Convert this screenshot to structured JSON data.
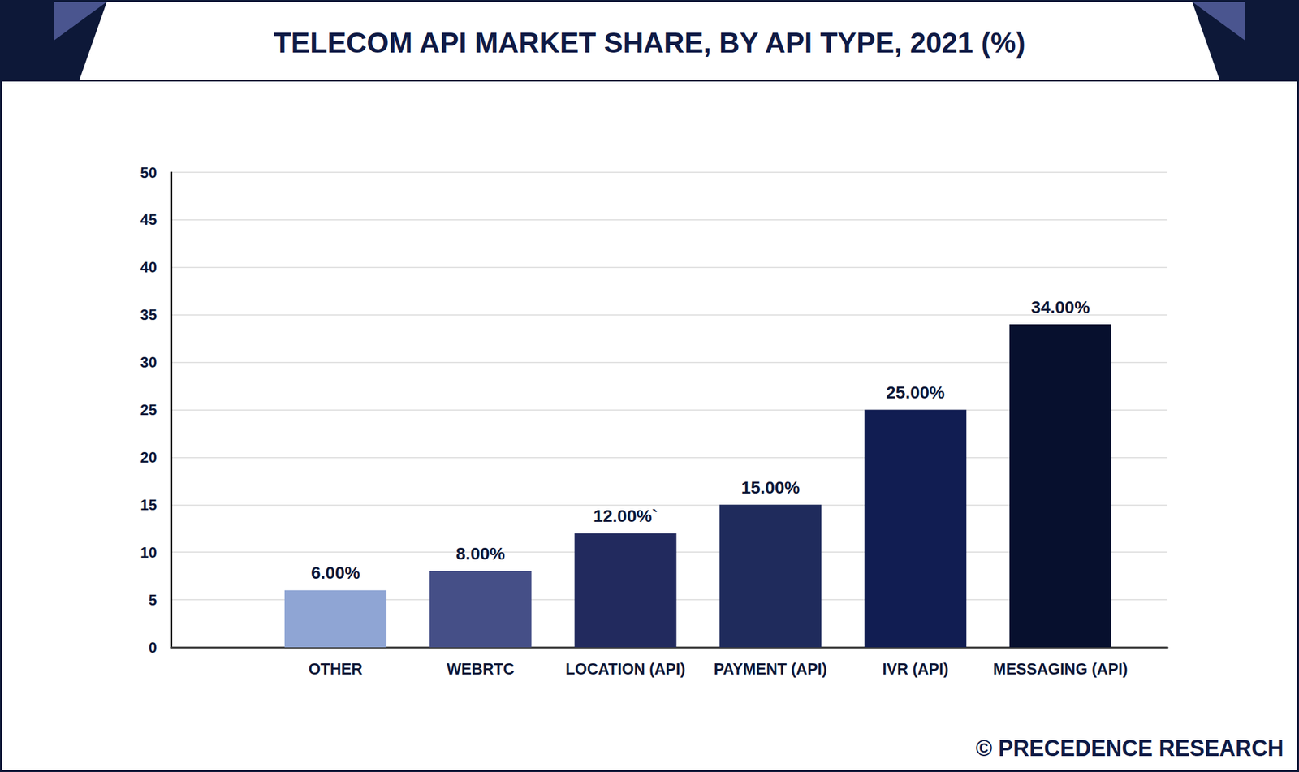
{
  "chart_data": {
    "type": "bar",
    "title": "TELECOM API MARKET SHARE, BY API TYPE, 2021 (%)",
    "categories": [
      "OTHER",
      "WEBRTC",
      "LOCATION (API)",
      "PAYMENT (API)",
      "IVR (API)",
      "MESSAGING (API)"
    ],
    "values": [
      6,
      8,
      12,
      15,
      25,
      34
    ],
    "value_labels": [
      "6.00%",
      "8.00%",
      "12.00%`",
      "15.00%",
      "25.00%",
      "34.00%"
    ],
    "colors": [
      "#8fa5d4",
      "#454f87",
      "#222a5e",
      "#1f2b5c",
      "#111d52",
      "#07102e"
    ],
    "ylim": [
      0,
      50
    ],
    "yticks": [
      0,
      5,
      10,
      15,
      20,
      25,
      30,
      35,
      40,
      45,
      50
    ],
    "grid": true,
    "data_labels": true,
    "source": "© PRECEDENCE RESEARCH"
  }
}
